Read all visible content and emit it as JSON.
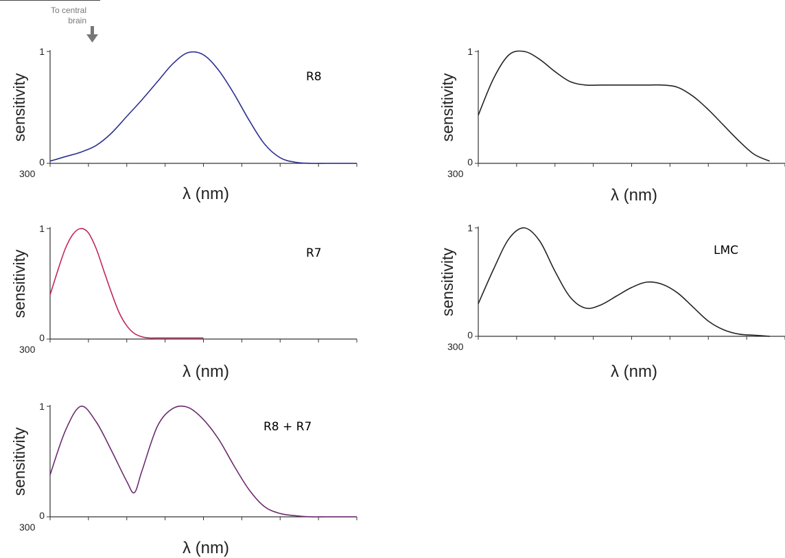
{
  "header": {
    "caption_line1": "To central",
    "caption_line2": "brain"
  },
  "chart_data": [
    {
      "type": "line",
      "panel_label": "R8",
      "xlabel": "λ (nm)",
      "ylabel": "sensitivity",
      "x_tick_label": "300",
      "y_tick_labels": [
        "0",
        "1"
      ],
      "xlim": [
        300,
        700
      ],
      "ylim": [
        0,
        1
      ],
      "grid": false,
      "series": [
        {
          "color": "#2b2f8f",
          "x": [
            300,
            320,
            340,
            360,
            380,
            400,
            420,
            440,
            460,
            480,
            500,
            520,
            540,
            560,
            580,
            600,
            620,
            640,
            660,
            680,
            700
          ],
          "y": [
            0.02,
            0.06,
            0.1,
            0.16,
            0.27,
            0.42,
            0.57,
            0.73,
            0.89,
            0.99,
            0.97,
            0.83,
            0.62,
            0.38,
            0.17,
            0.05,
            0.01,
            0.0,
            0.0,
            0.0,
            0.0
          ]
        }
      ]
    },
    {
      "type": "line",
      "panel_label": "R7",
      "xlabel": "λ (nm)",
      "ylabel": "sensitivity",
      "x_tick_label": "300",
      "y_tick_labels": [
        "0",
        "1"
      ],
      "xlim": [
        300,
        700
      ],
      "ylim": [
        0,
        1
      ],
      "grid": false,
      "series": [
        {
          "color": "#c0245e",
          "x": [
            300,
            310,
            320,
            330,
            340,
            350,
            360,
            370,
            380,
            390,
            400,
            410,
            420,
            430,
            440,
            450,
            460,
            480,
            500
          ],
          "y": [
            0.4,
            0.62,
            0.82,
            0.95,
            1.0,
            0.96,
            0.82,
            0.62,
            0.42,
            0.24,
            0.12,
            0.05,
            0.02,
            0.01,
            0.01,
            0.01,
            0.01,
            0.01,
            0.01
          ]
        }
      ]
    },
    {
      "type": "line",
      "panel_label": "R8 + R7",
      "xlabel": "λ (nm)",
      "ylabel": "sensitivity",
      "x_tick_label": "300",
      "y_tick_labels": [
        "0",
        "1"
      ],
      "xlim": [
        300,
        700
      ],
      "ylim": [
        0,
        1
      ],
      "grid": false,
      "series": [
        {
          "color": "#6a2a6e",
          "x": [
            300,
            320,
            340,
            360,
            380,
            400,
            410,
            420,
            440,
            460,
            480,
            500,
            520,
            540,
            560,
            580,
            600,
            620,
            640,
            660,
            680,
            700
          ],
          "y": [
            0.38,
            0.78,
            1.0,
            0.86,
            0.6,
            0.32,
            0.22,
            0.42,
            0.82,
            0.98,
            0.99,
            0.88,
            0.7,
            0.46,
            0.24,
            0.09,
            0.03,
            0.01,
            0.0,
            0.0,
            0.0,
            0.0
          ]
        }
      ]
    },
    {
      "type": "line",
      "panel_label": "",
      "xlabel": "λ (nm)",
      "ylabel": "sensitivity",
      "x_tick_label": "300",
      "y_tick_labels": [
        "0",
        "1"
      ],
      "xlim": [
        300,
        700
      ],
      "ylim": [
        0,
        1
      ],
      "grid": false,
      "series": [
        {
          "color": "#222222",
          "x": [
            300,
            320,
            340,
            360,
            380,
            400,
            420,
            440,
            460,
            480,
            500,
            520,
            540,
            560,
            580,
            600,
            620,
            640,
            660,
            680
          ],
          "y": [
            0.43,
            0.76,
            0.97,
            1.0,
            0.93,
            0.82,
            0.73,
            0.7,
            0.7,
            0.7,
            0.7,
            0.7,
            0.7,
            0.68,
            0.6,
            0.48,
            0.34,
            0.2,
            0.08,
            0.02
          ]
        }
      ]
    },
    {
      "type": "line",
      "panel_label": "LMC",
      "xlabel": "λ (nm)",
      "ylabel": "sensitivity",
      "x_tick_label": "300",
      "y_tick_labels": [
        "0",
        "1"
      ],
      "xlim": [
        300,
        700
      ],
      "ylim": [
        0,
        1
      ],
      "grid": false,
      "series": [
        {
          "color": "#222222",
          "x": [
            300,
            320,
            340,
            360,
            380,
            400,
            420,
            440,
            460,
            480,
            500,
            520,
            540,
            560,
            580,
            600,
            620,
            640,
            660,
            680
          ],
          "y": [
            0.3,
            0.62,
            0.9,
            1.0,
            0.88,
            0.6,
            0.36,
            0.26,
            0.29,
            0.37,
            0.45,
            0.5,
            0.48,
            0.4,
            0.27,
            0.14,
            0.06,
            0.02,
            0.01,
            0.0
          ]
        }
      ]
    }
  ]
}
